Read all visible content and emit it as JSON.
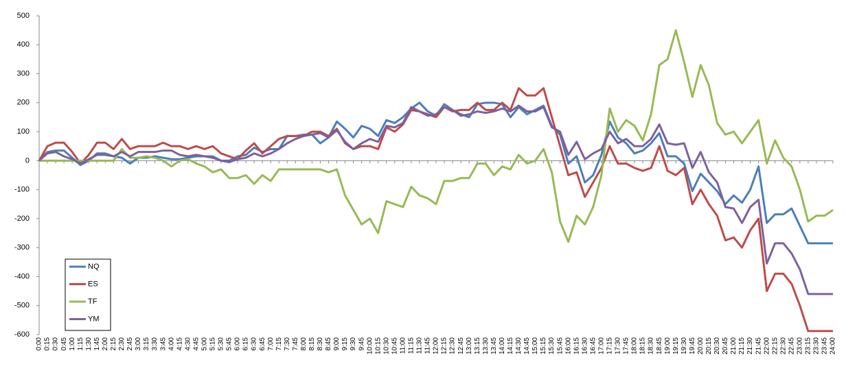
{
  "chart_data": {
    "type": "line",
    "categories": [
      "0:00",
      "0:15",
      "0:30",
      "0:45",
      "1:00",
      "1:15",
      "1:30",
      "1:45",
      "2:00",
      "2:15",
      "2:30",
      "2:45",
      "3:00",
      "3:15",
      "3:30",
      "3:45",
      "4:00",
      "4:15",
      "4:30",
      "4:45",
      "5:00",
      "5:15",
      "5:30",
      "5:45",
      "6:00",
      "6:15",
      "6:30",
      "6:45",
      "7:00",
      "7:15",
      "7:30",
      "7:45",
      "8:00",
      "8:15",
      "8:30",
      "8:45",
      "9:00",
      "9:15",
      "9:30",
      "9:45",
      "10:00",
      "10:15",
      "10:30",
      "10:45",
      "11:00",
      "11:15",
      "11:30",
      "11:45",
      "12:00",
      "12:15",
      "12:30",
      "12:45",
      "13:00",
      "13:15",
      "13:30",
      "13:45",
      "14:00",
      "14:15",
      "14:30",
      "14:45",
      "15:00",
      "15:15",
      "15:30",
      "15:45",
      "16:00",
      "16:15",
      "16:30",
      "16:45",
      "17:00",
      "17:15",
      "17:30",
      "17:45",
      "18:00",
      "18:15",
      "18:30",
      "18:45",
      "19:00",
      "19:15",
      "19:30",
      "19:45",
      "20:00",
      "20:15",
      "20:30",
      "20:45",
      "21:00",
      "21:15",
      "21:30",
      "21:45",
      "22:00",
      "22:15",
      "22:30",
      "22:45",
      "23:00",
      "23:15",
      "23:30",
      "23:45",
      "24:00"
    ],
    "series": [
      {
        "name": "NQ",
        "color": "#4a7ebb",
        "values": [
          0,
          30,
          35,
          35,
          10,
          -15,
          0,
          25,
          25,
          15,
          10,
          -10,
          10,
          10,
          15,
          10,
          5,
          5,
          10,
          15,
          15,
          15,
          0,
          0,
          15,
          20,
          45,
          30,
          40,
          40,
          85,
          85,
          90,
          90,
          60,
          80,
          135,
          110,
          80,
          120,
          110,
          85,
          140,
          130,
          150,
          180,
          200,
          170,
          155,
          195,
          175,
          160,
          150,
          195,
          200,
          200,
          195,
          150,
          185,
          160,
          175,
          190,
          120,
          90,
          -10,
          15,
          -75,
          -50,
          20,
          135,
          80,
          60,
          25,
          35,
          60,
          95,
          15,
          15,
          -10,
          -105,
          -45,
          -75,
          -105,
          -150,
          -120,
          -145,
          -100,
          -20,
          -215,
          -185,
          -185,
          -165,
          -225,
          -285,
          -285,
          -285,
          -285
        ]
      },
      {
        "name": "ES",
        "color": "#be4b48",
        "values": [
          0,
          50,
          62,
          62,
          30,
          -10,
          20,
          62,
          62,
          40,
          75,
          40,
          50,
          50,
          50,
          62,
          50,
          50,
          40,
          50,
          40,
          50,
          25,
          15,
          5,
          35,
          60,
          25,
          50,
          75,
          85,
          85,
          85,
          100,
          100,
          85,
          110,
          60,
          40,
          50,
          50,
          40,
          115,
          100,
          125,
          175,
          170,
          160,
          150,
          185,
          170,
          175,
          175,
          200,
          175,
          175,
          200,
          175,
          250,
          225,
          225,
          250,
          150,
          50,
          -50,
          -40,
          -125,
          -75,
          -25,
          50,
          -10,
          -10,
          -25,
          -35,
          -25,
          50,
          -35,
          -50,
          -25,
          -150,
          -100,
          -150,
          -190,
          -275,
          -265,
          -300,
          -240,
          -200,
          -450,
          -390,
          -390,
          -425,
          -500,
          -588,
          -588,
          -588,
          -588
        ]
      },
      {
        "name": "TF",
        "color": "#98b954",
        "values": [
          0,
          0,
          0,
          0,
          0,
          0,
          0,
          0,
          0,
          0,
          40,
          10,
          10,
          15,
          10,
          0,
          -20,
          0,
          5,
          -10,
          -20,
          -40,
          -30,
          -60,
          -60,
          -50,
          -80,
          -50,
          -70,
          -30,
          -30,
          -30,
          -30,
          -30,
          -30,
          -40,
          -30,
          -120,
          -170,
          -220,
          -200,
          -250,
          -140,
          -150,
          -160,
          -90,
          -120,
          -130,
          -150,
          -70,
          -70,
          -60,
          -60,
          -10,
          -10,
          -50,
          -20,
          -30,
          20,
          -10,
          0,
          40,
          -40,
          -210,
          -280,
          -190,
          -220,
          -160,
          -50,
          180,
          100,
          140,
          120,
          70,
          160,
          330,
          350,
          450,
          340,
          220,
          330,
          260,
          130,
          90,
          100,
          60,
          100,
          140,
          -10,
          70,
          10,
          -20,
          -100,
          -210,
          -190,
          -190,
          -170
        ]
      },
      {
        "name": "YM",
        "color": "#7d60a0",
        "values": [
          0,
          25,
          30,
          15,
          5,
          -10,
          5,
          20,
          20,
          15,
          30,
          15,
          30,
          30,
          30,
          35,
          35,
          20,
          15,
          20,
          15,
          10,
          0,
          -5,
          5,
          10,
          25,
          15,
          25,
          40,
          60,
          75,
          85,
          90,
          95,
          80,
          105,
          65,
          40,
          60,
          75,
          65,
          120,
          115,
          130,
          185,
          170,
          155,
          160,
          185,
          175,
          155,
          160,
          170,
          165,
          170,
          180,
          170,
          190,
          170,
          170,
          185,
          115,
          100,
          20,
          65,
          5,
          25,
          40,
          100,
          60,
          75,
          50,
          50,
          75,
          125,
          60,
          55,
          60,
          -25,
          30,
          -40,
          -75,
          -160,
          -165,
          -215,
          -160,
          -135,
          -355,
          -285,
          -285,
          -320,
          -375,
          -460,
          -460,
          -460,
          -460
        ]
      }
    ],
    "ylim": [
      -600,
      500
    ],
    "yticks": [
      -600,
      -500,
      -400,
      -300,
      -200,
      -100,
      0,
      100,
      200,
      300,
      400,
      500
    ],
    "grid": false,
    "legend_position": "lower left"
  }
}
